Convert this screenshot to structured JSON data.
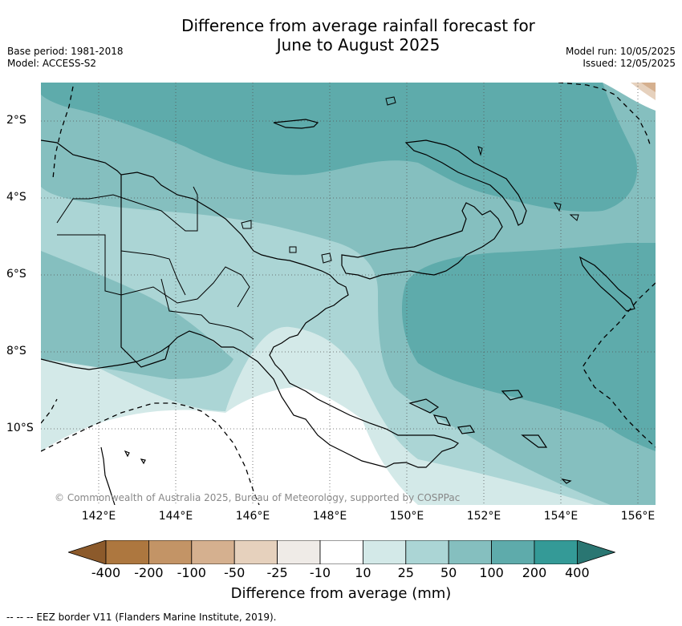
{
  "title": {
    "line1": "Difference from average rainfall forecast for",
    "line2": "June to August 2025"
  },
  "meta_left": {
    "base_period": "Base period: 1981-2018",
    "model": "Model: ACCESS-S2"
  },
  "meta_right": {
    "model_run": "Model run: 10/05/2025",
    "issued": "Issued: 12/05/2025"
  },
  "map": {
    "lon_labels": [
      "142°E",
      "144°E",
      "146°E",
      "148°E",
      "150°E",
      "152°E",
      "154°E",
      "156°E"
    ],
    "lat_labels": [
      "2°S",
      "4°S",
      "6°S",
      "8°S",
      "10°S"
    ],
    "copyright": "© Commonwealth of Australia 2025, Bureau of Meteorology, supported by COSPPac",
    "colors": {
      "land_outline": "#000000",
      "grid": "#555555"
    }
  },
  "colorbar": {
    "ticks": [
      "-400",
      "-200",
      "-100",
      "-50",
      "-25",
      "-10",
      "10",
      "25",
      "50",
      "100",
      "200",
      "400"
    ],
    "colors": [
      "#8c5a2b",
      "#ad773f",
      "#c39466",
      "#d5b08f",
      "#e6d1bd",
      "#efebe7",
      "#ffffff",
      "#d3e9e8",
      "#abd5d5",
      "#85bfbf",
      "#5eabab",
      "#349a97",
      "#2a7672"
    ],
    "title": "Difference from average (mm)"
  },
  "footnote": "--  --  -- EEZ border V11 (Flanders Marine Institute, 2019)."
}
